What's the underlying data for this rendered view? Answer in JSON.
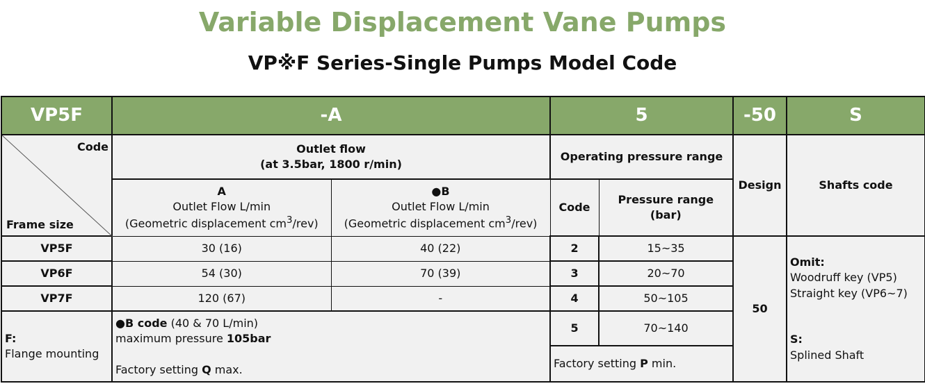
{
  "title": "Variable Displacement Vane Pumps",
  "subtitle": "VP※F Series-Single Pumps Model Code",
  "header": [
    "VP5F",
    "-A",
    "5",
    "-50",
    "S"
  ],
  "corner": {
    "code": "Code",
    "frame": "Frame size"
  },
  "outlet": {
    "title": "Outlet flow",
    "cond": "(at 3.5bar, 1800 r/min)",
    "a": {
      "code": "A",
      "label": "Outlet Flow L/min",
      "disp": "(Geometric displacement cm",
      "sup": "3",
      "unit": "/rev)"
    },
    "b": {
      "code": "●B",
      "label": "Outlet Flow L/min",
      "disp": "(Geometric displacement cm",
      "sup": "3",
      "unit": "/rev)"
    }
  },
  "pressure": {
    "title": "Operating pressure range",
    "code": "Code",
    "range": "Pressure range",
    "unit": "(bar)"
  },
  "design": {
    "label": "Design",
    "value": "50"
  },
  "shafts": {
    "label": "Shafts code",
    "omit": "Omit:",
    "omit1": "Woodruff key (VP5)",
    "omit2": "Straight key (VP6~7)",
    "s": "S:",
    "s1": "Splined Shaft"
  },
  "rows": [
    {
      "frame": "VP5F",
      "a": "30 (16)",
      "b": "40 (22)"
    },
    {
      "frame": "VP6F",
      "a": "54 (30)",
      "b": "70 (39)"
    },
    {
      "frame": "VP7F",
      "a": "120 (67)",
      "b": "-"
    }
  ],
  "pressure_rows": [
    {
      "code": "2",
      "range": "15~35"
    },
    {
      "code": "3",
      "range": "20~70"
    },
    {
      "code": "4",
      "range": "50~105"
    },
    {
      "code": "5",
      "range": "70~140"
    }
  ],
  "flange": {
    "code": "F:",
    "label": "Flange mounting"
  },
  "note": {
    "b_code": "●B code",
    "b_rest": " (40 & 70 L/min)",
    "max": "maximum pressure ",
    "max_val": "105bar",
    "fs": "Factory setting ",
    "fs_b": "Q",
    "fs_end": " max."
  },
  "note_p": {
    "fs": "Factory setting ",
    "fs_b": "P",
    "fs_end": " min."
  }
}
